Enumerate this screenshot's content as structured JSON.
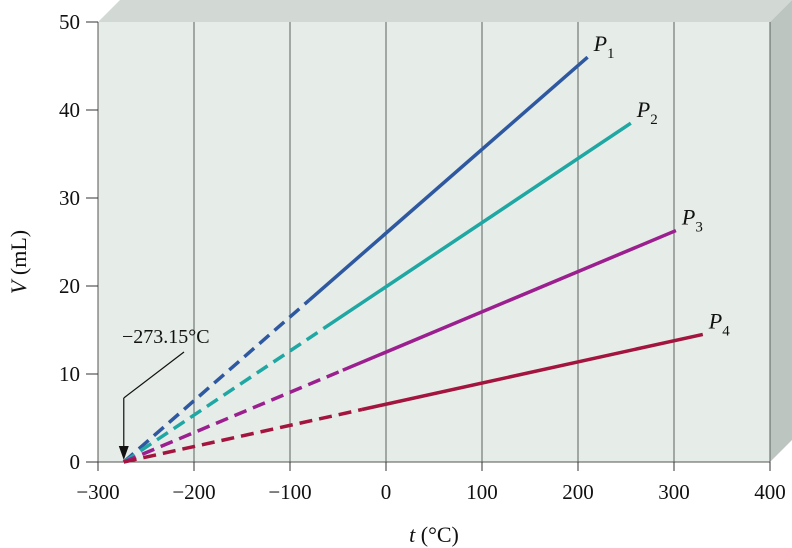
{
  "chart_data": {
    "type": "line",
    "x_var": "t",
    "x_unit": "(°C)",
    "y_var": "V",
    "y_unit": "(mL)",
    "xlim": [
      -300,
      400
    ],
    "ylim": [
      0,
      50
    ],
    "xticks": [
      -300,
      -200,
      -100,
      0,
      100,
      200,
      300,
      400
    ],
    "yticks": [
      0,
      10,
      20,
      30,
      40,
      50
    ],
    "xtick_labels": [
      "−300",
      "−200",
      "−100",
      "0",
      "100",
      "200",
      "300",
      "400"
    ],
    "ytick_labels": [
      "0",
      "10",
      "20",
      "30",
      "40",
      "50"
    ],
    "grid": "vertical",
    "colors": {
      "plot_background": "#e6ece8",
      "box_top": "#d2d9d5",
      "box_side": "#bcc5c0",
      "grid": "#5c6460"
    },
    "annotation": {
      "text": "−273.15°C",
      "points_to": [
        -273.15,
        0
      ]
    },
    "series": [
      {
        "name": "P",
        "subscript": "1",
        "color": "#2e58a0",
        "x": [
          -273.15,
          210
        ],
        "y": [
          0,
          46
        ],
        "dashed_x": [
          -273.15,
          -80
        ]
      },
      {
        "name": "P",
        "subscript": "2",
        "color": "#1fa7a3",
        "x": [
          -273.15,
          255
        ],
        "y": [
          0,
          38.5
        ],
        "dashed_x": [
          -273.15,
          -65
        ]
      },
      {
        "name": "P",
        "subscript": "3",
        "color": "#9b1f8f",
        "x": [
          -273.15,
          302
        ],
        "y": [
          0,
          26.3
        ],
        "dashed_x": [
          -273.15,
          -45
        ]
      },
      {
        "name": "P",
        "subscript": "4",
        "color": "#a3143e",
        "x": [
          -273.15,
          330
        ],
        "y": [
          0,
          14.5
        ],
        "dashed_x": [
          -273.15,
          -25
        ]
      }
    ]
  }
}
